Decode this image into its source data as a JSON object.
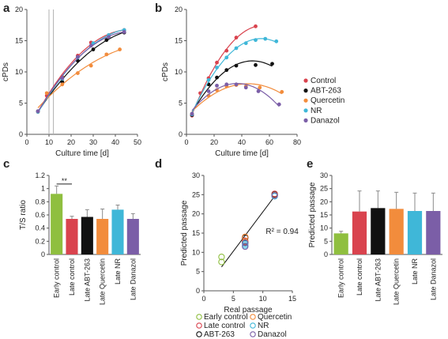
{
  "colors": {
    "Control": "#d9434e",
    "ABT-263": "#111111",
    "Quercetin": "#f28c3c",
    "NR": "#3fb7d8",
    "Danazol": "#7b5ea7",
    "EarlyGreen": "#8fbf3f",
    "Axis": "#555555"
  },
  "chart_data": [
    {
      "panel": "a",
      "type": "scatter",
      "xlabel": "Culture time [d]",
      "ylabel": "cPDs",
      "xlim": [
        0,
        50
      ],
      "ylim": [
        0,
        20
      ],
      "xticks": [
        0,
        10,
        20,
        30,
        40,
        50
      ],
      "yticks": [
        0,
        5,
        10,
        15,
        20
      ],
      "vlines": [
        10,
        12
      ],
      "series": [
        {
          "name": "Control",
          "x": [
            5,
            9,
            16,
            23,
            29,
            37,
            44
          ],
          "y": [
            3.6,
            6.2,
            9.2,
            12.6,
            14.7,
            15.9,
            16.7
          ]
        },
        {
          "name": "ABT-263",
          "x": [
            5,
            16,
            23,
            30,
            36,
            44
          ],
          "y": [
            3.7,
            8.4,
            11.8,
            13.6,
            15.1,
            16.3
          ]
        },
        {
          "name": "Quercetin",
          "x": [
            5,
            9,
            16,
            23,
            29,
            36,
            42
          ],
          "y": [
            3.6,
            6.6,
            8.0,
            9.8,
            11.0,
            12.8,
            13.6
          ]
        },
        {
          "name": "NR",
          "x": [
            5,
            16,
            23,
            30,
            37,
            44
          ],
          "y": [
            3.6,
            8.9,
            12.3,
            14.6,
            15.9,
            16.7
          ]
        },
        {
          "name": "Danazol",
          "x": [
            5,
            16,
            23,
            29,
            37,
            44
          ],
          "y": [
            3.7,
            9.0,
            12.4,
            14.2,
            15.6,
            16.4
          ]
        }
      ]
    },
    {
      "panel": "b",
      "type": "scatter",
      "xlabel": "Culture time [d]",
      "ylabel": "cPDs",
      "xlim": [
        0,
        80
      ],
      "ylim": [
        0,
        20
      ],
      "xticks": [
        0,
        20,
        40,
        60,
        80
      ],
      "yticks": [
        0,
        5,
        10,
        15,
        20
      ],
      "legend": [
        "Control",
        "ABT-263",
        "Quercetin",
        "NR",
        "Danazol"
      ],
      "series": [
        {
          "name": "Control",
          "x": [
            4,
            10,
            16,
            22,
            29,
            36,
            50
          ],
          "y": [
            3.0,
            6.6,
            9.0,
            11.5,
            13.4,
            15.5,
            17.3
          ]
        },
        {
          "name": "ABT-263",
          "x": [
            4,
            16,
            22,
            29,
            36,
            50,
            62
          ],
          "y": [
            3.1,
            8.0,
            9.1,
            10.3,
            11.0,
            11.1,
            11.3
          ]
        },
        {
          "name": "Quercetin",
          "x": [
            4,
            16,
            22,
            29,
            36,
            43,
            53,
            69
          ],
          "y": [
            3.3,
            6.2,
            7.1,
            7.7,
            7.9,
            7.7,
            7.5,
            6.8
          ]
        },
        {
          "name": "NR",
          "x": [
            4,
            16,
            22,
            29,
            36,
            43,
            50,
            57,
            65
          ],
          "y": [
            3.2,
            8.7,
            10.7,
            12.3,
            13.8,
            14.6,
            15.1,
            15.3,
            14.9
          ]
        },
        {
          "name": "Danazol",
          "x": [
            4,
            16,
            22,
            29,
            36,
            43,
            52,
            67
          ],
          "y": [
            3.3,
            6.9,
            7.8,
            8.0,
            8.0,
            7.5,
            6.9,
            4.8
          ]
        }
      ]
    },
    {
      "panel": "c",
      "type": "bar",
      "ylabel": "T/S ratio",
      "ylim": [
        0,
        1.2
      ],
      "yticks": [
        "0",
        "0.2",
        "0.4",
        "0.6",
        "0.8",
        "1",
        "1.2"
      ],
      "categories": [
        "Early control",
        "Late control",
        "Late ABT-263",
        "Late Quercetin",
        "Late NR",
        "Late Danazol"
      ],
      "values": [
        0.92,
        0.54,
        0.57,
        0.54,
        0.68,
        0.54
      ],
      "errors": [
        0.12,
        0.04,
        0.11,
        0.15,
        0.07,
        0.08
      ],
      "significance": "**"
    },
    {
      "panel": "d",
      "type": "scatter",
      "xlabel": "Real passage",
      "ylabel": "Predicted passage",
      "xlim": [
        0,
        15
      ],
      "ylim": [
        0,
        30
      ],
      "xticks": [
        0,
        5,
        10,
        15
      ],
      "yticks": [
        0,
        5,
        10,
        15,
        20,
        25,
        30
      ],
      "annotation": "R² = 0.94",
      "fit_line": {
        "x": [
          3,
          12
        ],
        "y": [
          6.2,
          24.6
        ]
      },
      "legend": [
        "Early control",
        "Quercetin",
        "Late control",
        "NR",
        "ABT-263",
        "Danazol"
      ],
      "series": [
        {
          "name": "Early control",
          "x": [
            3,
            3
          ],
          "y": [
            7.5,
            8.8
          ]
        },
        {
          "name": "Late control",
          "x": [
            7,
            7,
            12
          ],
          "y": [
            13.0,
            14.0,
            25.2
          ]
        },
        {
          "name": "ABT-263",
          "x": [
            7,
            7,
            12
          ],
          "y": [
            13.8,
            12.6,
            25.0
          ]
        },
        {
          "name": "Quercetin",
          "x": [
            7,
            7,
            12
          ],
          "y": [
            14.0,
            12.8,
            24.9
          ]
        },
        {
          "name": "NR",
          "x": [
            7,
            7,
            12
          ],
          "y": [
            12.2,
            11.8,
            24.6
          ]
        },
        {
          "name": "Danazol",
          "x": [
            7,
            7,
            12
          ],
          "y": [
            11.5,
            12.5,
            24.8
          ]
        }
      ]
    },
    {
      "panel": "e",
      "type": "bar",
      "ylabel": "Predicted passage",
      "ylim": [
        0,
        30
      ],
      "yticks": [
        0,
        5,
        10,
        15,
        20,
        25,
        30
      ],
      "categories": [
        "Early control",
        "Late control",
        "Late ABT-263",
        "Late Quercetin",
        "Late NR",
        "Late Danazol"
      ],
      "values": [
        8.0,
        16.3,
        17.6,
        17.3,
        16.5,
        16.5
      ],
      "errors": [
        0.8,
        7.8,
        6.5,
        6.3,
        6.8,
        6.8
      ]
    }
  ]
}
